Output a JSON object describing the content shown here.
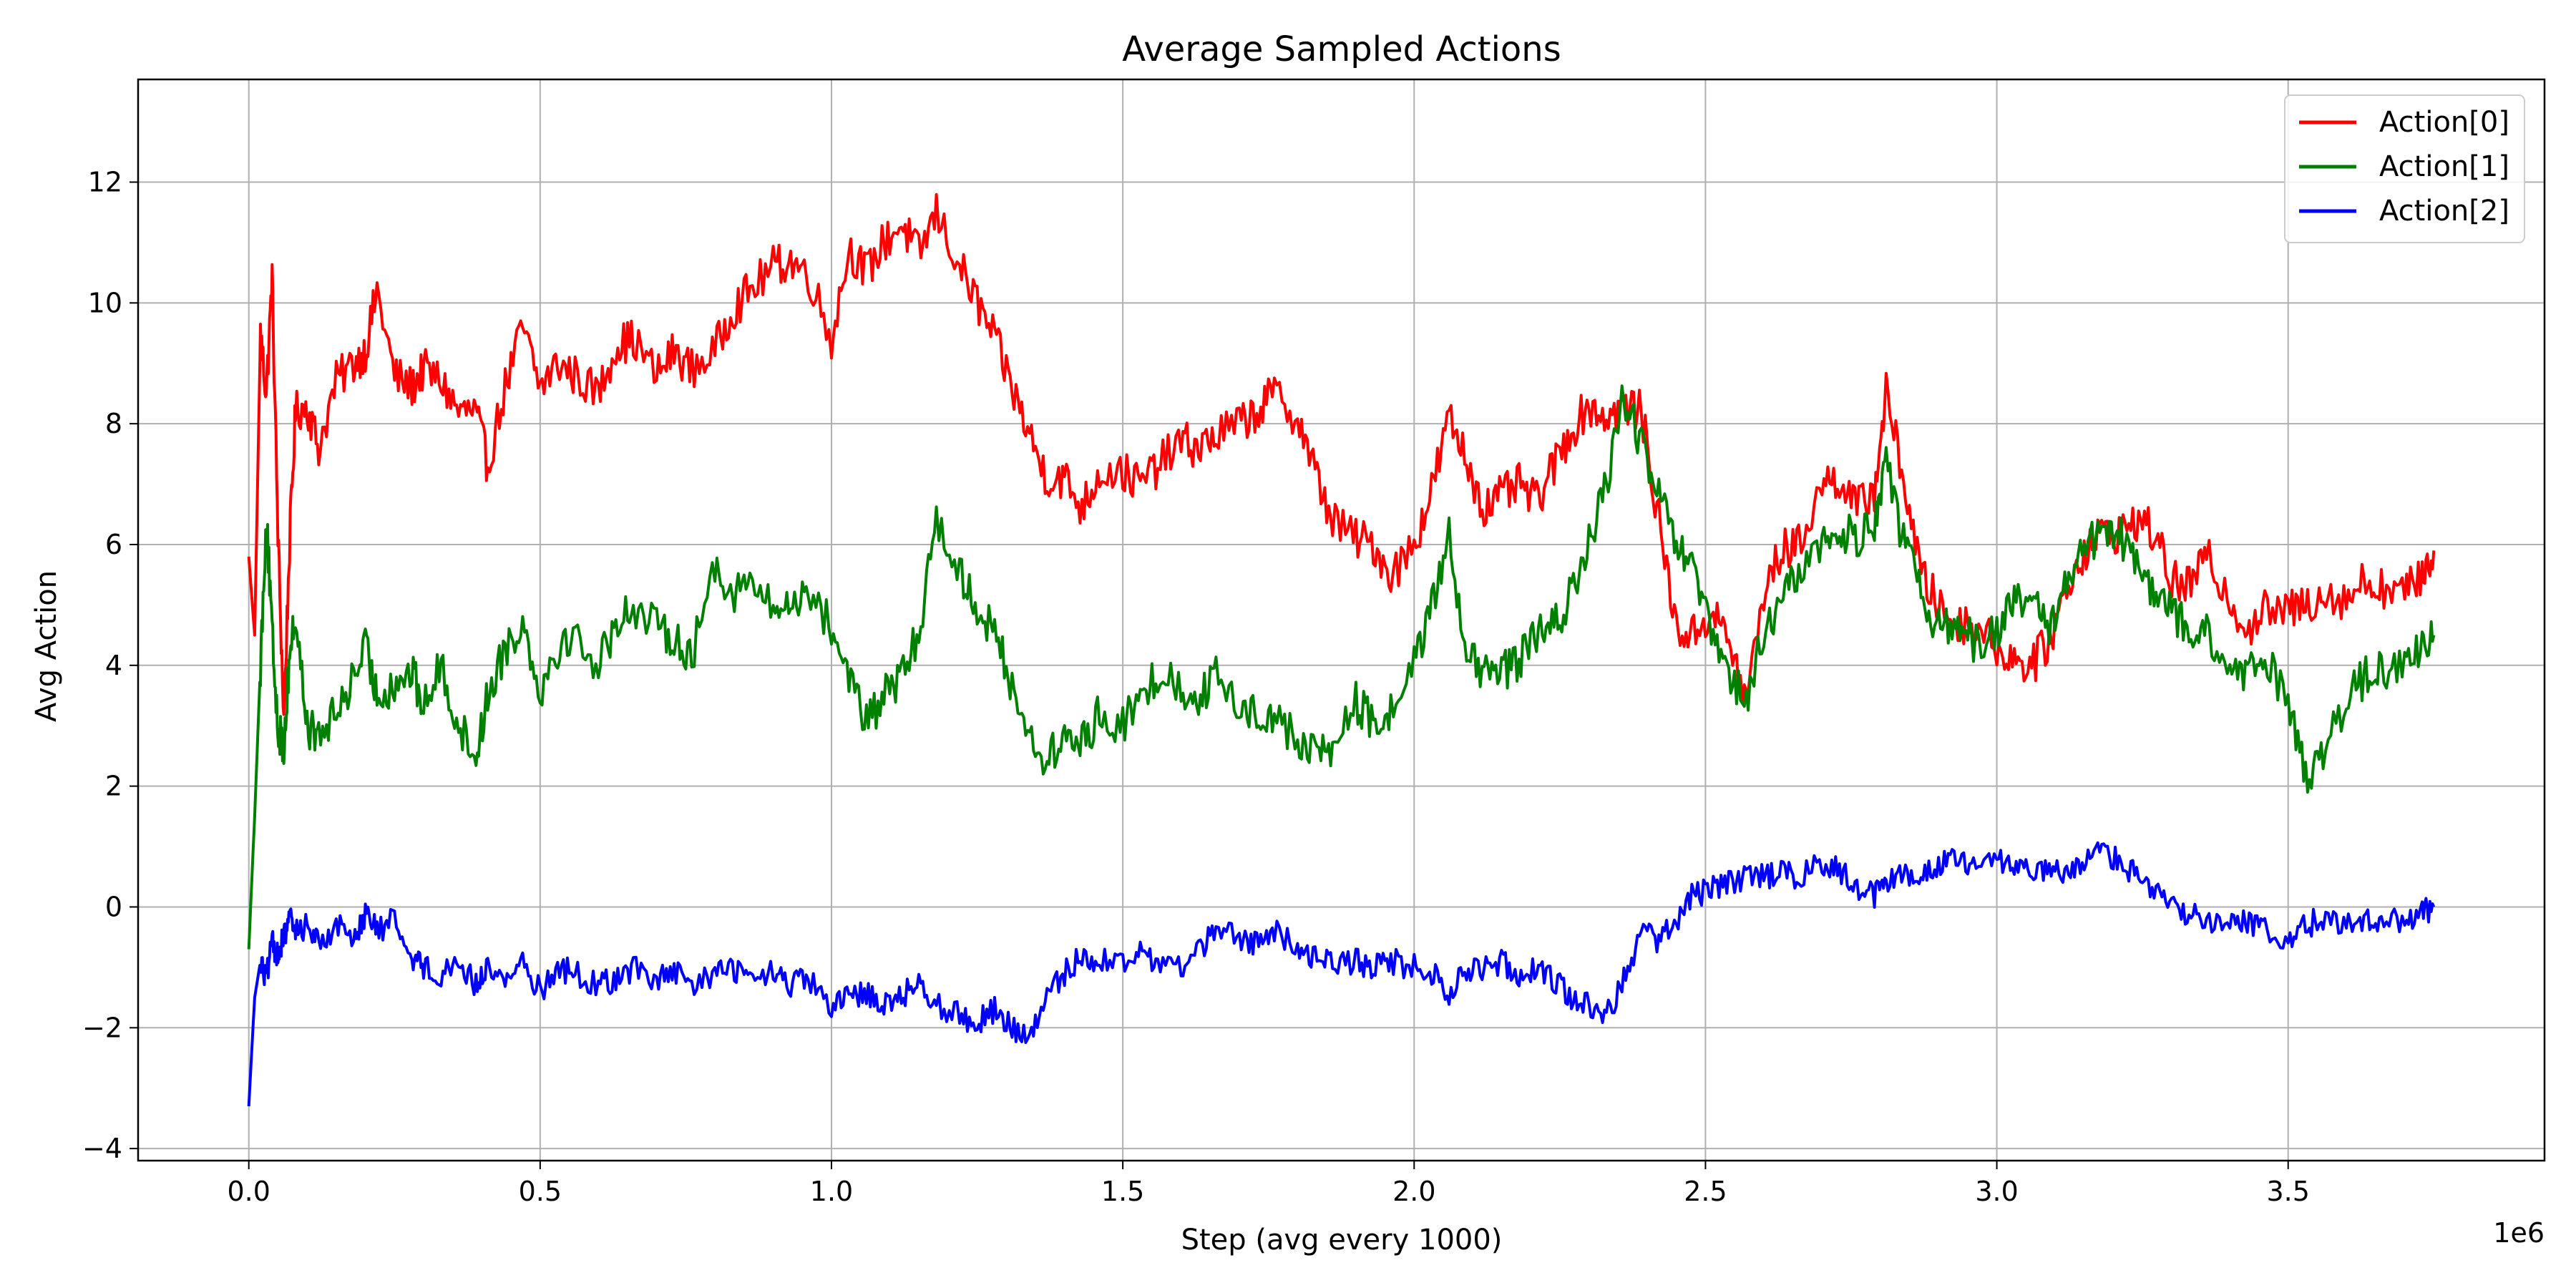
{
  "chart_data": {
    "type": "line",
    "title": "Average Sampled Actions",
    "xlabel": "Step (avg every 1000)",
    "ylabel": "Avg Action",
    "x_offset_label": "1e6",
    "xlim": [
      -0.19,
      3.94
    ],
    "ylim": [
      -4.2,
      13.7
    ],
    "x_tick_values": [
      0.0,
      0.5,
      1.0,
      1.5,
      2.0,
      2.5,
      3.0,
      3.5
    ],
    "x_tick_labels": [
      "0.0",
      "0.5",
      "1.0",
      "1.5",
      "2.0",
      "2.5",
      "3.0",
      "3.5"
    ],
    "y_tick_values": [
      -4,
      -2,
      0,
      2,
      4,
      6,
      8,
      10,
      12
    ],
    "y_tick_labels": [
      "−4",
      "−2",
      "0",
      "2",
      "4",
      "6",
      "8",
      "10",
      "12"
    ],
    "grid": true,
    "legend_position": "top-right",
    "x_units": "millions of steps",
    "series": [
      {
        "name": "Action[0]",
        "color": "#ff0000",
        "x": [
          0.0,
          0.01,
          0.02,
          0.03,
          0.04,
          0.05,
          0.06,
          0.07,
          0.08,
          0.1,
          0.12,
          0.15,
          0.18,
          0.2,
          0.22,
          0.25,
          0.28,
          0.3,
          0.33,
          0.36,
          0.39,
          0.41,
          0.44,
          0.47,
          0.5,
          0.53,
          0.56,
          0.6,
          0.63,
          0.66,
          0.7,
          0.73,
          0.76,
          0.8,
          0.83,
          0.86,
          0.9,
          0.93,
          0.96,
          1.0,
          1.03,
          1.06,
          1.09,
          1.12,
          1.15,
          1.18,
          1.22,
          1.25,
          1.28,
          1.31,
          1.34,
          1.37,
          1.4,
          1.43,
          1.46,
          1.5,
          1.53,
          1.56,
          1.6,
          1.63,
          1.66,
          1.7,
          1.73,
          1.76,
          1.8,
          1.83,
          1.86,
          1.9,
          1.93,
          1.96,
          2.0,
          2.03,
          2.06,
          2.09,
          2.12,
          2.15,
          2.18,
          2.21,
          2.24,
          2.27,
          2.3,
          2.33,
          2.36,
          2.39,
          2.42,
          2.45,
          2.48,
          2.51,
          2.54,
          2.57,
          2.6,
          2.63,
          2.66,
          2.7,
          2.73,
          2.76,
          2.79,
          2.81,
          2.84,
          2.87,
          2.9,
          2.93,
          2.96,
          3.0,
          3.03,
          3.06,
          3.09,
          3.12,
          3.15,
          3.18,
          3.21,
          3.24,
          3.27,
          3.3,
          3.33,
          3.36,
          3.4,
          3.43,
          3.46,
          3.5,
          3.53,
          3.56,
          3.6,
          3.63,
          3.66,
          3.7,
          3.73,
          3.75
        ],
        "y": [
          5.8,
          4.5,
          9.5,
          8.5,
          10.4,
          6.2,
          3.1,
          6.0,
          8.2,
          8.3,
          7.6,
          8.7,
          9.0,
          9.2,
          10.2,
          8.8,
          8.6,
          8.9,
          8.7,
          8.2,
          8.2,
          7.3,
          8.6,
          9.6,
          8.6,
          9.0,
          8.8,
          8.5,
          9.3,
          9.4,
          8.8,
          9.2,
          8.9,
          9.2,
          9.9,
          10.2,
          10.6,
          10.7,
          10.5,
          9.4,
          10.9,
          10.5,
          11.0,
          11.3,
          10.8,
          11.5,
          10.6,
          10.0,
          9.4,
          8.6,
          7.8,
          7.1,
          7.1,
          6.6,
          7.2,
          7.2,
          7.0,
          7.3,
          7.7,
          7.6,
          7.8,
          8.0,
          8.2,
          8.5,
          8.1,
          7.2,
          6.4,
          6.1,
          6.0,
          5.5,
          6.0,
          6.9,
          8.1,
          7.4,
          6.6,
          6.8,
          7.0,
          6.7,
          7.3,
          7.9,
          8.3,
          8.1,
          8.3,
          8.2,
          6.4,
          4.6,
          4.5,
          4.9,
          4.4,
          3.4,
          5.2,
          5.9,
          6.0,
          7.0,
          7.1,
          6.6,
          6.9,
          8.5,
          7.1,
          5.5,
          5.0,
          4.7,
          4.7,
          4.3,
          4.1,
          4.0,
          4.4,
          5.3,
          5.9,
          6.2,
          6.2,
          6.4,
          6.2,
          5.4,
          5.3,
          5.8,
          5.1,
          4.6,
          4.9,
          4.9,
          5.0,
          5.2,
          5.1,
          5.4,
          5.3,
          5.2,
          5.5,
          5.9
        ]
      },
      {
        "name": "Action[1]",
        "color": "#008000",
        "x": [
          0.0,
          0.01,
          0.02,
          0.03,
          0.04,
          0.05,
          0.06,
          0.07,
          0.08,
          0.1,
          0.12,
          0.15,
          0.18,
          0.2,
          0.22,
          0.25,
          0.28,
          0.3,
          0.33,
          0.36,
          0.39,
          0.41,
          0.44,
          0.47,
          0.5,
          0.53,
          0.56,
          0.6,
          0.63,
          0.66,
          0.7,
          0.73,
          0.76,
          0.8,
          0.83,
          0.86,
          0.9,
          0.93,
          0.96,
          1.0,
          1.03,
          1.06,
          1.09,
          1.12,
          1.15,
          1.18,
          1.22,
          1.25,
          1.28,
          1.31,
          1.34,
          1.37,
          1.4,
          1.43,
          1.46,
          1.5,
          1.53,
          1.56,
          1.6,
          1.63,
          1.66,
          1.7,
          1.73,
          1.76,
          1.8,
          1.83,
          1.86,
          1.9,
          1.93,
          1.96,
          2.0,
          2.03,
          2.06,
          2.09,
          2.12,
          2.15,
          2.18,
          2.21,
          2.24,
          2.27,
          2.3,
          2.33,
          2.36,
          2.39,
          2.42,
          2.45,
          2.48,
          2.51,
          2.54,
          2.57,
          2.6,
          2.63,
          2.66,
          2.7,
          2.73,
          2.76,
          2.79,
          2.81,
          2.84,
          2.87,
          2.9,
          2.93,
          2.96,
          3.0,
          3.03,
          3.06,
          3.09,
          3.12,
          3.15,
          3.18,
          3.21,
          3.24,
          3.27,
          3.3,
          3.33,
          3.36,
          3.4,
          3.43,
          3.46,
          3.5,
          3.53,
          3.56,
          3.6,
          3.63,
          3.66,
          3.7,
          3.73,
          3.75
        ],
        "y": [
          -0.7,
          1.5,
          4.0,
          6.5,
          4.5,
          3.0,
          2.6,
          4.2,
          4.8,
          3.0,
          2.8,
          3.2,
          3.8,
          4.3,
          3.5,
          3.7,
          3.9,
          3.3,
          4.0,
          3.0,
          2.5,
          3.5,
          4.3,
          4.7,
          3.6,
          4.3,
          4.5,
          4.0,
          4.7,
          5.0,
          4.6,
          4.5,
          4.1,
          5.7,
          5.2,
          5.4,
          4.9,
          5.0,
          5.3,
          4.6,
          3.9,
          3.0,
          3.5,
          3.8,
          4.5,
          6.5,
          5.5,
          5.0,
          4.5,
          3.7,
          2.8,
          2.4,
          2.8,
          2.7,
          3.2,
          3.0,
          3.4,
          3.9,
          3.6,
          3.5,
          3.8,
          3.3,
          3.2,
          3.2,
          2.7,
          2.6,
          2.6,
          3.4,
          3.0,
          3.2,
          4.1,
          4.9,
          6.2,
          4.2,
          3.8,
          3.9,
          4.1,
          4.5,
          4.6,
          5.2,
          6.0,
          7.0,
          8.5,
          7.6,
          6.8,
          6.0,
          5.5,
          4.5,
          3.8,
          3.4,
          4.5,
          5.0,
          5.6,
          6.0,
          6.2,
          6.1,
          6.4,
          7.4,
          6.0,
          5.2,
          4.6,
          4.7,
          4.4,
          4.6,
          5.0,
          5.1,
          4.5,
          5.5,
          6.0,
          6.1,
          6.2,
          5.6,
          5.2,
          4.9,
          4.6,
          4.5,
          3.9,
          3.8,
          4.1,
          3.5,
          2.2,
          2.5,
          3.4,
          3.8,
          3.9,
          4.0,
          4.3,
          4.5
        ]
      },
      {
        "name": "Action[2]",
        "color": "#0000ff",
        "x": [
          0.0,
          0.01,
          0.02,
          0.03,
          0.04,
          0.05,
          0.06,
          0.07,
          0.08,
          0.1,
          0.12,
          0.15,
          0.18,
          0.2,
          0.22,
          0.25,
          0.28,
          0.3,
          0.33,
          0.36,
          0.39,
          0.41,
          0.44,
          0.47,
          0.5,
          0.53,
          0.56,
          0.6,
          0.63,
          0.66,
          0.7,
          0.73,
          0.76,
          0.8,
          0.83,
          0.86,
          0.9,
          0.93,
          0.96,
          1.0,
          1.03,
          1.06,
          1.09,
          1.12,
          1.15,
          1.18,
          1.22,
          1.25,
          1.28,
          1.31,
          1.34,
          1.37,
          1.4,
          1.43,
          1.46,
          1.5,
          1.53,
          1.56,
          1.6,
          1.63,
          1.66,
          1.7,
          1.73,
          1.76,
          1.8,
          1.83,
          1.86,
          1.9,
          1.93,
          1.96,
          2.0,
          2.03,
          2.06,
          2.09,
          2.12,
          2.15,
          2.18,
          2.21,
          2.24,
          2.27,
          2.3,
          2.33,
          2.36,
          2.39,
          2.42,
          2.45,
          2.48,
          2.51,
          2.54,
          2.57,
          2.6,
          2.63,
          2.66,
          2.7,
          2.73,
          2.76,
          2.79,
          2.81,
          2.84,
          2.87,
          2.9,
          2.93,
          2.96,
          3.0,
          3.03,
          3.06,
          3.09,
          3.12,
          3.15,
          3.18,
          3.21,
          3.24,
          3.27,
          3.3,
          3.33,
          3.36,
          3.4,
          3.43,
          3.46,
          3.5,
          3.53,
          3.56,
          3.6,
          3.63,
          3.66,
          3.7,
          3.73,
          3.75
        ],
        "y": [
          -3.3,
          -1.5,
          -0.9,
          -1.2,
          -0.6,
          -0.8,
          -0.5,
          -0.2,
          -0.4,
          -0.3,
          -0.6,
          -0.3,
          -0.5,
          -0.1,
          -0.4,
          -0.2,
          -0.8,
          -1.0,
          -1.1,
          -0.9,
          -1.3,
          -1.0,
          -1.2,
          -0.9,
          -1.4,
          -1.0,
          -1.1,
          -1.3,
          -1.2,
          -1.0,
          -1.2,
          -1.1,
          -1.3,
          -1.1,
          -1.0,
          -1.2,
          -1.1,
          -1.3,
          -1.2,
          -1.7,
          -1.5,
          -1.4,
          -1.6,
          -1.5,
          -1.2,
          -1.6,
          -1.8,
          -1.9,
          -1.7,
          -2.0,
          -2.2,
          -1.5,
          -1.1,
          -0.8,
          -0.9,
          -0.9,
          -0.8,
          -0.9,
          -1.0,
          -0.7,
          -0.4,
          -0.5,
          -0.6,
          -0.4,
          -0.7,
          -0.8,
          -0.9,
          -0.9,
          -1.0,
          -0.9,
          -1.0,
          -1.1,
          -1.4,
          -1.1,
          -1.0,
          -0.9,
          -1.1,
          -1.0,
          -1.2,
          -1.5,
          -1.6,
          -1.8,
          -1.2,
          -0.4,
          -0.6,
          -0.2,
          0.2,
          0.3,
          0.4,
          0.5,
          0.5,
          0.6,
          0.5,
          0.7,
          0.6,
          0.3,
          0.2,
          0.4,
          0.5,
          0.6,
          0.7,
          0.8,
          0.6,
          0.8,
          0.7,
          0.5,
          0.6,
          0.5,
          0.7,
          0.9,
          0.8,
          0.5,
          0.3,
          0.0,
          -0.1,
          -0.2,
          -0.2,
          -0.3,
          -0.4,
          -0.5,
          -0.3,
          -0.2,
          -0.3,
          -0.2,
          -0.3,
          -0.2,
          -0.1,
          0.0
        ]
      }
    ]
  }
}
